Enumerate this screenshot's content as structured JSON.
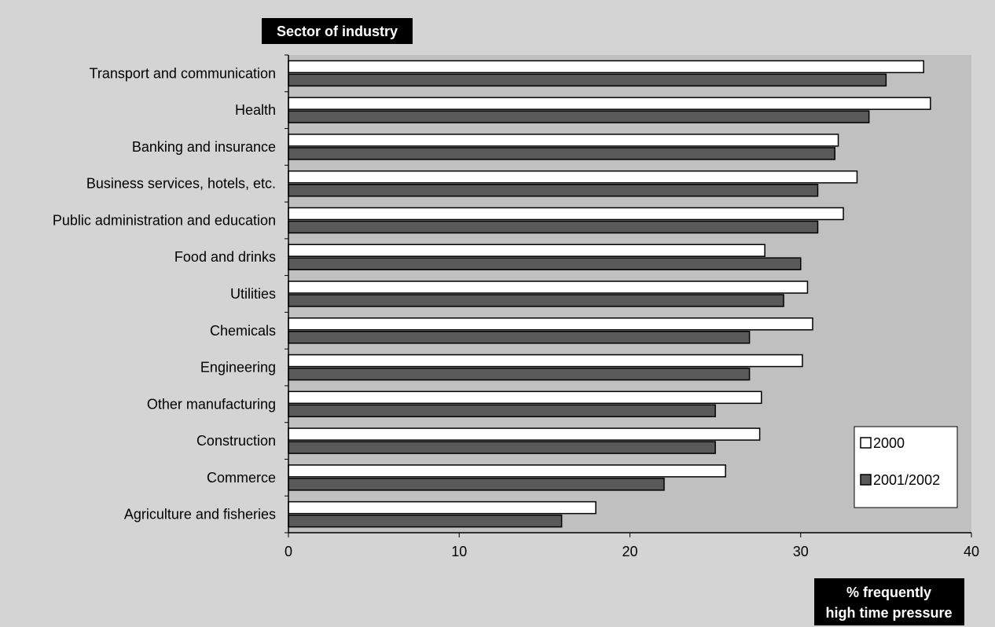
{
  "chart_data": {
    "type": "bar",
    "orientation": "horizontal",
    "title": "Sector of industry",
    "xlabel": "% frequently high time pressure",
    "xlabel_lines": [
      "% frequently",
      "high time pressure"
    ],
    "xlim": [
      0,
      40
    ],
    "xticks": [
      0,
      10,
      20,
      30,
      40
    ],
    "categories": [
      "Transport and communication",
      "Health",
      "Banking and insurance",
      "Business services, hotels, etc.",
      "Public administration and education",
      "Food and drinks",
      "Utilities",
      "Chemicals",
      "Engineering",
      "Other manufacturing",
      "Construction",
      "Commerce",
      "Agriculture and fisheries"
    ],
    "series": [
      {
        "name": "2000",
        "color": "#ffffff",
        "values": [
          37.2,
          37.6,
          32.2,
          33.3,
          32.5,
          27.9,
          30.4,
          30.7,
          30.1,
          27.7,
          27.6,
          25.6,
          18.0
        ]
      },
      {
        "name": "2001/2002",
        "color": "#595959",
        "values": [
          35.0,
          34.0,
          32.0,
          31.0,
          31.0,
          30.0,
          29.0,
          27.0,
          27.0,
          25.0,
          25.0,
          22.0,
          16.0
        ]
      }
    ],
    "grid": false,
    "legend_position": "bottom-right"
  },
  "colors": {
    "background": "#d4d4d4",
    "plot_area": "#c0c0c0",
    "bar_outline": "#000000"
  }
}
